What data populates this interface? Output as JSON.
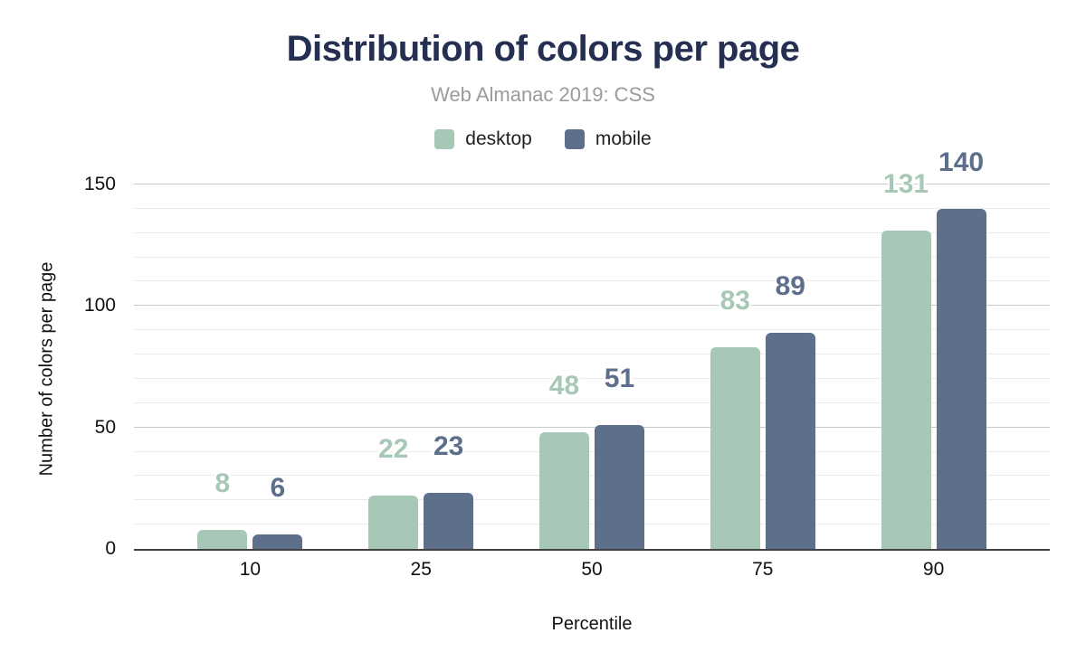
{
  "chart_data": {
    "type": "bar",
    "title": "Distribution of colors per page",
    "subtitle": "Web Almanac 2019: CSS",
    "xlabel": "Percentile",
    "ylabel": "Number of colors per page",
    "categories": [
      "10",
      "25",
      "50",
      "75",
      "90"
    ],
    "series": [
      {
        "name": "desktop",
        "color": "#a8c8b7",
        "values": [
          8,
          22,
          48,
          83,
          131
        ]
      },
      {
        "name": "mobile",
        "color": "#5e6f8c",
        "values": [
          6,
          23,
          51,
          89,
          140
        ]
      }
    ],
    "ylim": [
      0,
      150
    ],
    "yticks": [
      0,
      50,
      100,
      150
    ],
    "minor_grid_step": 10,
    "grid": true,
    "legend_position": "top",
    "data_labels_shown": true
  },
  "colors": {
    "title": "#242f51",
    "subtitle": "#9b9b9b",
    "axis_text": "#111111",
    "axis_line": "#424242",
    "gridline_major": "#c9c9c9",
    "gridline_minor": "#ebebeb",
    "background": "#ffffff",
    "desktop_series": "#a8c8b7",
    "mobile_series": "#5e6f8c"
  }
}
